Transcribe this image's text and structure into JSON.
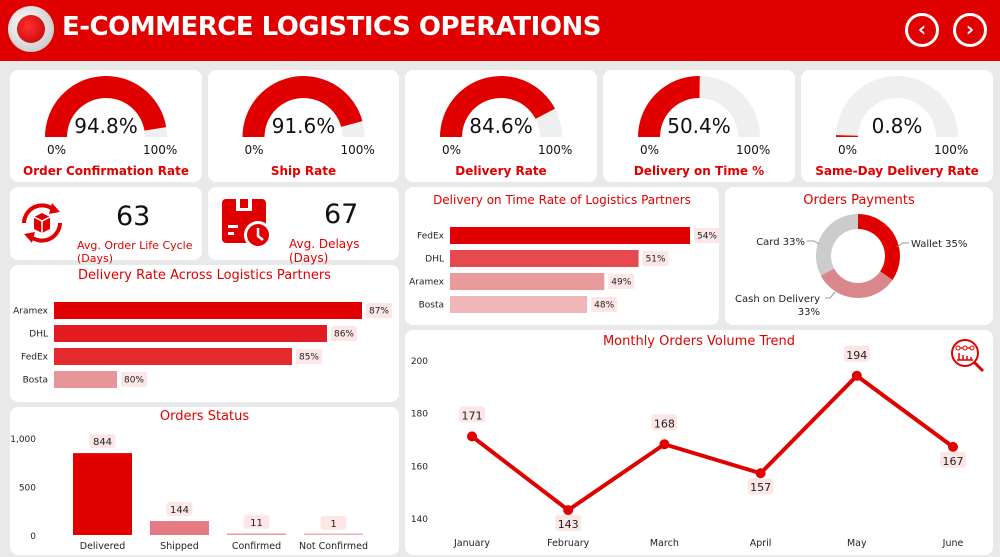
{
  "header": {
    "title": "E-COMMERCE LOGISTICS OPERATIONS",
    "prev_icon": "chevron-left",
    "next_icon": "chevron-right"
  },
  "colors": {
    "accent": "#e00000",
    "track": "#efefef"
  },
  "gauges": [
    {
      "label": "Order Confirmation Rate",
      "value_text": "94.8%",
      "value": 94.8,
      "min": "0%",
      "max": "100%"
    },
    {
      "label": "Ship Rate",
      "value_text": "91.6%",
      "value": 91.6,
      "min": "0%",
      "max": "100%"
    },
    {
      "label": "Delivery Rate",
      "value_text": "84.6%",
      "value": 84.6,
      "min": "0%",
      "max": "100%"
    },
    {
      "label": "Delivery on Time %",
      "value_text": "50.4%",
      "value": 50.4,
      "min": "0%",
      "max": "100%"
    },
    {
      "label": "Same-Day Delivery Rate",
      "value_text": "0.8%",
      "value": 0.8,
      "min": "0%",
      "max": "100%"
    }
  ],
  "kpis": [
    {
      "value": "63",
      "label": "Avg. Order Life Cycle (Days)",
      "icon": "box-cycle-icon"
    },
    {
      "value": "67",
      "label": "Avg. Delays (Days)",
      "icon": "delay-clock-icon"
    }
  ],
  "chart_data": [
    {
      "type": "bar",
      "orientation": "horizontal",
      "title": "Delivery Rate Across Logistics Partners",
      "categories": [
        "Aramex",
        "DHL",
        "FedEx",
        "Bosta"
      ],
      "values": [
        87,
        86,
        85,
        80
      ],
      "labels": [
        "87%",
        "86%",
        "85%",
        "80%"
      ],
      "xlim": [
        78.2,
        87
      ],
      "colors": [
        "#e00000",
        "#e31b22",
        "#e52a2d",
        "#e8959a"
      ]
    },
    {
      "type": "bar",
      "orientation": "horizontal",
      "title": "Delivery on Time Rate of Logistics Partners",
      "categories": [
        "FedEx",
        "DHL",
        "Aramex",
        "Bosta"
      ],
      "values": [
        54,
        51,
        49,
        48
      ],
      "labels": [
        "54%",
        "51%",
        "49%",
        "48%"
      ],
      "xlim": [
        40,
        54
      ],
      "colors": [
        "#e00000",
        "#e64a4e",
        "#eb9a9c",
        "#efb7b9"
      ]
    },
    {
      "type": "pie",
      "donut": true,
      "title": "Orders Payments",
      "slices": [
        {
          "name": "Wallet",
          "value": 35,
          "label": "Wallet 35%",
          "color": "#e00000"
        },
        {
          "name": "Cash on Delivery",
          "value": 33,
          "label": "Cash on Delivery",
          "label2": "33%",
          "color": "#d9878a"
        },
        {
          "name": "Card",
          "value": 33,
          "label": "Card 33%",
          "color": "#cccccc"
        }
      ]
    },
    {
      "type": "bar",
      "title": "Orders Status",
      "categories": [
        "Delivered",
        "Shipped",
        "Confirmed",
        "Not Confirmed"
      ],
      "values": [
        844,
        144,
        11,
        1
      ],
      "labels": [
        "844",
        "144",
        "11",
        "1"
      ],
      "ylim": [
        0,
        1000
      ],
      "yticks": [
        "0",
        "500",
        "1,000"
      ],
      "ytick_values": [
        0,
        500,
        1000
      ],
      "colors": [
        "#e00000",
        "#e57a80",
        "#ec9a9e",
        "#f0b0b3"
      ]
    },
    {
      "type": "line",
      "title": "Monthly Orders Volume Trend",
      "categories": [
        "January",
        "February",
        "March",
        "April",
        "May",
        "June"
      ],
      "values": [
        171,
        143,
        168,
        157,
        194,
        167
      ],
      "labels": [
        "171",
        "143",
        "168",
        "157",
        "194",
        "167"
      ],
      "ylim": [
        140,
        200
      ],
      "yticks": [
        "140",
        "160",
        "180",
        "200"
      ],
      "ytick_values": [
        140,
        160,
        180,
        200
      ],
      "color": "#e00000"
    }
  ]
}
